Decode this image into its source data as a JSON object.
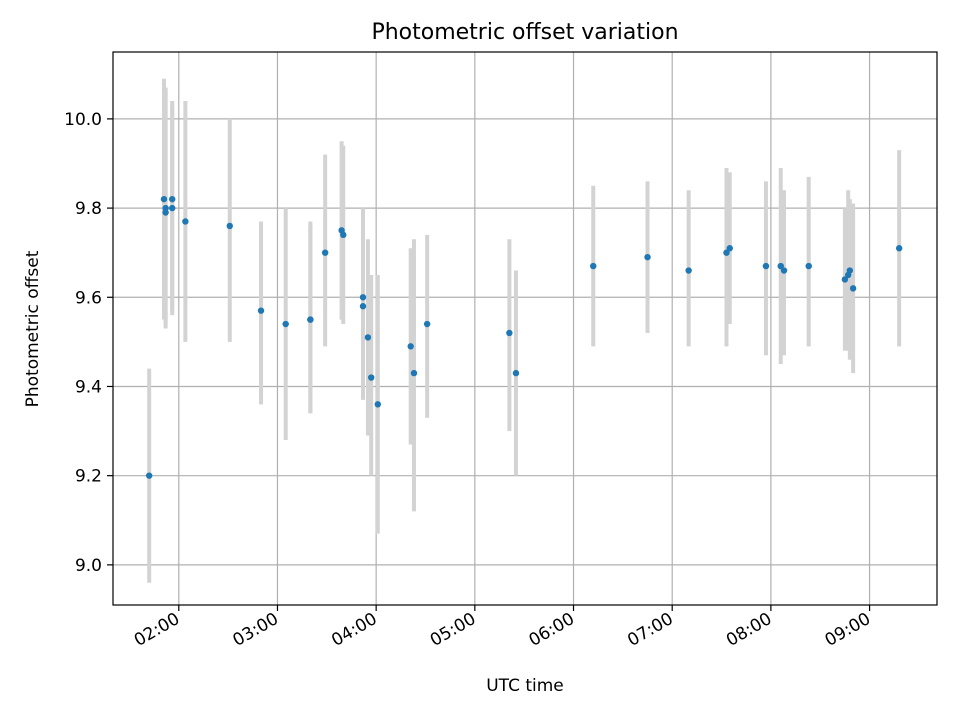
{
  "chart_data": {
    "type": "scatter",
    "title": "Photometric offset variation",
    "xlabel": "UTC time",
    "ylabel": "Photometric offset",
    "x_unit": "UTC time (HH:MM)",
    "xlim": [
      "01:20",
      "09:41"
    ],
    "ylim": [
      8.91,
      10.15
    ],
    "xticks": [
      "02:00",
      "03:00",
      "04:00",
      "05:00",
      "06:00",
      "07:00",
      "08:00",
      "09:00"
    ],
    "yticks": [
      9.0,
      9.2,
      9.4,
      9.6,
      9.8,
      10.0
    ],
    "ytick_labels": [
      "9.0",
      "9.2",
      "9.4",
      "9.6",
      "9.8",
      "10.0"
    ],
    "grid": true,
    "colors": {
      "points": "#1f77b4",
      "error_bars": "#d3d3d3",
      "grid": "#b0b0b0",
      "axes": "#000000"
    },
    "points": [
      {
        "x": "01:42",
        "y": 9.2,
        "lo": 8.96,
        "hi": 9.44
      },
      {
        "x": "01:51",
        "y": 9.82,
        "lo": 9.55,
        "hi": 10.09
      },
      {
        "x": "01:52",
        "y": 9.79,
        "lo": 9.53,
        "hi": 10.07
      },
      {
        "x": "01:52",
        "y": 9.8,
        "lo": 9.54,
        "hi": 10.06
      },
      {
        "x": "01:56",
        "y": 9.8,
        "lo": 9.56,
        "hi": 10.04
      },
      {
        "x": "01:56",
        "y": 9.82,
        "lo": 9.57,
        "hi": 10.03
      },
      {
        "x": "02:04",
        "y": 9.77,
        "lo": 9.5,
        "hi": 10.04
      },
      {
        "x": "02:31",
        "y": 9.76,
        "lo": 9.5,
        "hi": 10.0
      },
      {
        "x": "02:50",
        "y": 9.57,
        "lo": 9.36,
        "hi": 9.77
      },
      {
        "x": "03:05",
        "y": 9.54,
        "lo": 9.28,
        "hi": 9.8
      },
      {
        "x": "03:20",
        "y": 9.55,
        "lo": 9.34,
        "hi": 9.77
      },
      {
        "x": "03:20",
        "y": 9.55,
        "lo": 9.34,
        "hi": 9.76
      },
      {
        "x": "03:29",
        "y": 9.7,
        "lo": 9.49,
        "hi": 9.92
      },
      {
        "x": "03:39",
        "y": 9.75,
        "lo": 9.55,
        "hi": 9.95
      },
      {
        "x": "03:40",
        "y": 9.74,
        "lo": 9.54,
        "hi": 9.94
      },
      {
        "x": "03:52",
        "y": 9.6,
        "lo": 9.4,
        "hi": 9.8
      },
      {
        "x": "03:52",
        "y": 9.58,
        "lo": 9.37,
        "hi": 9.79
      },
      {
        "x": "03:55",
        "y": 9.51,
        "lo": 9.29,
        "hi": 9.73
      },
      {
        "x": "03:57",
        "y": 9.42,
        "lo": 9.2,
        "hi": 9.65
      },
      {
        "x": "04:01",
        "y": 9.36,
        "lo": 9.07,
        "hi": 9.65
      },
      {
        "x": "04:21",
        "y": 9.49,
        "lo": 9.27,
        "hi": 9.71
      },
      {
        "x": "04:23",
        "y": 9.43,
        "lo": 9.12,
        "hi": 9.73
      },
      {
        "x": "04:31",
        "y": 9.54,
        "lo": 9.33,
        "hi": 9.74
      },
      {
        "x": "05:21",
        "y": 9.52,
        "lo": 9.3,
        "hi": 9.73
      },
      {
        "x": "05:25",
        "y": 9.43,
        "lo": 9.2,
        "hi": 9.66
      },
      {
        "x": "06:12",
        "y": 9.67,
        "lo": 9.49,
        "hi": 9.85
      },
      {
        "x": "06:45",
        "y": 9.69,
        "lo": 9.52,
        "hi": 9.86
      },
      {
        "x": "07:10",
        "y": 9.66,
        "lo": 9.49,
        "hi": 9.84
      },
      {
        "x": "07:33",
        "y": 9.7,
        "lo": 9.49,
        "hi": 9.89
      },
      {
        "x": "07:35",
        "y": 9.71,
        "lo": 9.54,
        "hi": 9.88
      },
      {
        "x": "07:57",
        "y": 9.67,
        "lo": 9.47,
        "hi": 9.86
      },
      {
        "x": "08:06",
        "y": 9.67,
        "lo": 9.45,
        "hi": 9.89
      },
      {
        "x": "08:08",
        "y": 9.66,
        "lo": 9.47,
        "hi": 9.84
      },
      {
        "x": "08:23",
        "y": 9.67,
        "lo": 9.49,
        "hi": 9.87
      },
      {
        "x": "08:45",
        "y": 9.64,
        "lo": 9.48,
        "hi": 9.8
      },
      {
        "x": "08:47",
        "y": 9.65,
        "lo": 9.48,
        "hi": 9.84
      },
      {
        "x": "08:48",
        "y": 9.66,
        "lo": 9.46,
        "hi": 9.82
      },
      {
        "x": "08:50",
        "y": 9.62,
        "lo": 9.43,
        "hi": 9.81
      },
      {
        "x": "09:18",
        "y": 9.71,
        "lo": 9.49,
        "hi": 9.93
      }
    ]
  }
}
